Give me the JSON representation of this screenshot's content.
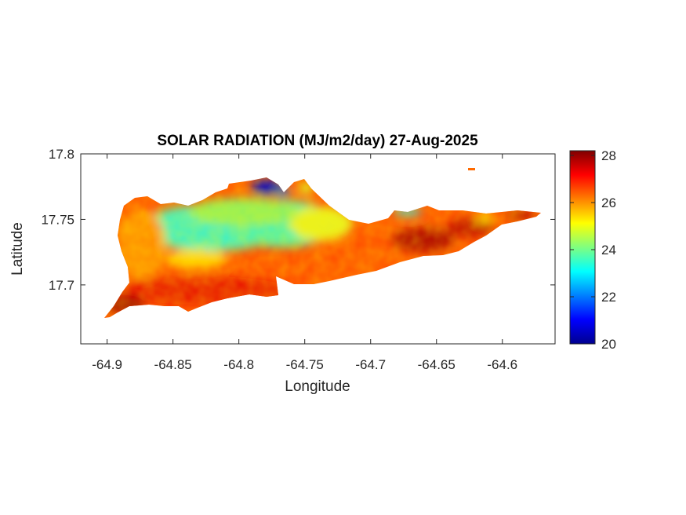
{
  "chart_data": {
    "type": "heatmap",
    "title": "SOLAR RADIATION (MJ/m2/day) 27-Aug-2025",
    "xlabel": "Longitude",
    "ylabel": "Latitude",
    "xlim": [
      -64.92,
      -64.56
    ],
    "ylim": [
      17.655,
      17.8
    ],
    "xticks": [
      -64.9,
      -64.85,
      -64.8,
      -64.75,
      -64.7,
      -64.65,
      -64.6
    ],
    "xtick_labels": [
      "-64.9",
      "-64.85",
      "-64.8",
      "-64.75",
      "-64.7",
      "-64.65",
      "-64.6"
    ],
    "yticks": [
      17.7,
      17.75,
      17.8
    ],
    "ytick_labels": [
      "17.7",
      "17.75",
      "17.8"
    ],
    "colorbar": {
      "colormap": "jet",
      "range": [
        20,
        28.2
      ],
      "ticks": [
        20,
        22,
        24,
        26,
        28
      ],
      "tick_labels": [
        "20",
        "22",
        "24",
        "26",
        "28"
      ]
    },
    "regions": [
      {
        "name": "south coast",
        "lon_range": [
          -64.9,
          -64.6
        ],
        "value": 27
      },
      {
        "name": "north-central interior",
        "lon_range": [
          -64.87,
          -64.72
        ],
        "value": 24
      },
      {
        "name": "north coast near -64.78",
        "lon_range": [
          -64.79,
          -64.77
        ],
        "value": 20.5
      },
      {
        "name": "east end",
        "lon_range": [
          -64.66,
          -64.57
        ],
        "value": 27.5
      }
    ]
  }
}
